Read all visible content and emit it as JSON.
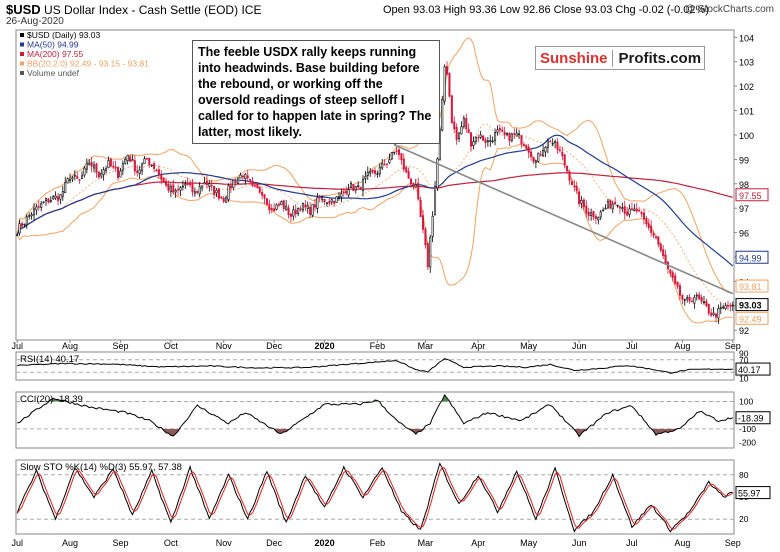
{
  "header": {
    "symbol": "$USD",
    "name": "US Dollar Index - Cash Settle (EOD)",
    "exchange": "ICE",
    "date": "26-Aug-2020",
    "ohlc": "Open 93.03  High 93.36  Low 92.86  Close 93.03  Chg -0.02 (-0.02%)",
    "credit": "@ StockCharts.com"
  },
  "annotation": "The feeble USDX rally keeps running into headwinds. Base building before the rebound, or working off the oversold readings of steep selloff I called for to happen late in spring? The latter, most likely.",
  "brand": {
    "left": "Sunshine",
    "right": "Profits.com"
  },
  "colors": {
    "price_up": "#000000",
    "price_down": "#d6183c",
    "ma50": "#1f3a8f",
    "ma200": "#c0203a",
    "bb": "#f2a262",
    "trendline": "#888888",
    "osc": "#000000",
    "pos_fill": "#4f8a4f",
    "neg_fill": "#8c5a5a",
    "stoch_d": "#e02020"
  },
  "chart_data": [
    {
      "type": "candlestick",
      "title": "$USD (Daily) 93.03",
      "legend": [
        "$USD (Daily) 93.03",
        "MA(50) 94.99",
        "MA(200) 97.55",
        "BB(20,2.0) 92.49 - 93.15 - 93.81",
        "Volume undef"
      ],
      "legend_placement": "top-left",
      "x_ticks": [
        "Jul",
        "Aug",
        "Sep",
        "Oct",
        "Nov",
        "Dec",
        "2020",
        "Feb",
        "Mar",
        "Apr",
        "May",
        "Jun",
        "Jul",
        "Aug",
        "Sep"
      ],
      "y_ticks": [
        92,
        93,
        94,
        95,
        96,
        97,
        98,
        99,
        100,
        101,
        102,
        103,
        104
      ],
      "ylim": [
        91.6,
        104.3
      ],
      "last_value_badges": [
        "97.55",
        "94.99",
        "93.81",
        "93.03",
        "92.49"
      ],
      "close_anchors": [
        [
          0,
          96.1
        ],
        [
          6,
          96.8
        ],
        [
          12,
          97.3
        ],
        [
          18,
          97.5
        ],
        [
          22,
          98.3
        ],
        [
          26,
          98.1
        ],
        [
          30,
          98.9
        ],
        [
          34,
          98.4
        ],
        [
          38,
          98.8
        ],
        [
          42,
          98.4
        ],
        [
          46,
          99.2
        ],
        [
          50,
          98.5
        ],
        [
          54,
          99.0
        ],
        [
          58,
          98.6
        ],
        [
          62,
          97.9
        ],
        [
          66,
          97.6
        ],
        [
          70,
          98.0
        ],
        [
          74,
          97.6
        ],
        [
          78,
          98.1
        ],
        [
          82,
          97.7
        ],
        [
          86,
          97.4
        ],
        [
          90,
          98.1
        ],
        [
          94,
          98.4
        ],
        [
          98,
          97.8
        ],
        [
          102,
          97.7
        ],
        [
          106,
          96.9
        ],
        [
          110,
          97.2
        ],
        [
          114,
          96.7
        ],
        [
          118,
          97.1
        ],
        [
          122,
          96.9
        ],
        [
          126,
          97.4
        ],
        [
          130,
          97.3
        ],
        [
          134,
          97.4
        ],
        [
          138,
          97.9
        ],
        [
          142,
          97.8
        ],
        [
          146,
          98.3
        ],
        [
          150,
          98.5
        ],
        [
          154,
          98.9
        ],
        [
          158,
          99.4
        ],
        [
          162,
          98.4
        ],
        [
          166,
          97.8
        ],
        [
          169,
          96.0
        ],
        [
          171,
          94.7
        ],
        [
          173,
          96.8
        ],
        [
          175,
          99.0
        ],
        [
          177,
          101.3
        ],
        [
          178,
          102.8
        ],
        [
          179,
          102.6
        ],
        [
          181,
          100.6
        ],
        [
          183,
          99.8
        ],
        [
          186,
          100.6
        ],
        [
          189,
          99.7
        ],
        [
          192,
          100.0
        ],
        [
          196,
          99.7
        ],
        [
          200,
          100.1
        ],
        [
          204,
          99.9
        ],
        [
          208,
          100.0
        ],
        [
          212,
          99.6
        ],
        [
          216,
          98.9
        ],
        [
          219,
          99.5
        ],
        [
          222,
          99.8
        ],
        [
          226,
          99.3
        ],
        [
          230,
          98.3
        ],
        [
          234,
          97.3
        ],
        [
          238,
          96.8
        ],
        [
          242,
          96.7
        ],
        [
          246,
          97.1
        ],
        [
          250,
          97.3
        ],
        [
          254,
          96.8
        ],
        [
          258,
          96.9
        ],
        [
          262,
          96.3
        ],
        [
          266,
          95.8
        ],
        [
          270,
          94.7
        ],
        [
          274,
          93.8
        ],
        [
          278,
          93.1
        ],
        [
          282,
          93.4
        ],
        [
          286,
          93.0
        ],
        [
          290,
          92.6
        ],
        [
          294,
          92.9
        ],
        [
          298,
          93.03
        ]
      ]
    },
    {
      "type": "line",
      "title": "RSI(14) 40.17",
      "y_ticks": [
        10,
        30,
        50,
        70,
        90
      ],
      "ylim": [
        5,
        95
      ],
      "levels": [
        30,
        70
      ],
      "last_value": "40.17",
      "value_anchors": [
        [
          0,
          52
        ],
        [
          20,
          58
        ],
        [
          40,
          56
        ],
        [
          60,
          47
        ],
        [
          80,
          50
        ],
        [
          100,
          44
        ],
        [
          120,
          45
        ],
        [
          140,
          57
        ],
        [
          150,
          63
        ],
        [
          158,
          68
        ],
        [
          166,
          38
        ],
        [
          171,
          31
        ],
        [
          178,
          74
        ],
        [
          186,
          46
        ],
        [
          200,
          50
        ],
        [
          212,
          46
        ],
        [
          222,
          55
        ],
        [
          232,
          36
        ],
        [
          244,
          43
        ],
        [
          254,
          52
        ],
        [
          264,
          40
        ],
        [
          272,
          28
        ],
        [
          280,
          38
        ],
        [
          290,
          40
        ],
        [
          298,
          40.17
        ]
      ]
    },
    {
      "type": "line",
      "title": "CCI(20) -18.39",
      "y_ticks": [
        -200,
        -100,
        0,
        100
      ],
      "ylim": [
        -240,
        170
      ],
      "levels": [
        -100,
        100
      ],
      "last_value": "-18.39",
      "value_anchors": [
        [
          0,
          -60
        ],
        [
          15,
          125
        ],
        [
          30,
          60
        ],
        [
          45,
          20
        ],
        [
          55,
          -40
        ],
        [
          65,
          -155
        ],
        [
          75,
          70
        ],
        [
          88,
          -60
        ],
        [
          95,
          20
        ],
        [
          110,
          -140
        ],
        [
          128,
          80
        ],
        [
          142,
          80
        ],
        [
          150,
          110
        ],
        [
          158,
          -40
        ],
        [
          166,
          -140
        ],
        [
          172,
          -60
        ],
        [
          178,
          150
        ],
        [
          186,
          -60
        ],
        [
          196,
          20
        ],
        [
          210,
          -40
        ],
        [
          222,
          80
        ],
        [
          234,
          -150
        ],
        [
          246,
          20
        ],
        [
          256,
          70
        ],
        [
          266,
          -140
        ],
        [
          276,
          -100
        ],
        [
          284,
          30
        ],
        [
          292,
          -40
        ],
        [
          298,
          -18.39
        ]
      ]
    },
    {
      "type": "line",
      "title": "Slow STO %K(14) %D(3) 55.97, 57.38",
      "series": [
        {
          "name": "%K(14)",
          "last": "55.97"
        },
        {
          "name": "%D(3)",
          "last": "57.38"
        }
      ],
      "y_ticks": [
        20,
        50,
        80
      ],
      "ylim": [
        0,
        100
      ],
      "levels": [
        20,
        80
      ],
      "last_value": "55.97",
      "x_ticks": [
        "Jul",
        "Aug",
        "Sep",
        "Oct",
        "Nov",
        "Dec",
        "2020",
        "Feb",
        "Mar",
        "Apr",
        "May",
        "Jun",
        "Jul",
        "Aug",
        "Sep"
      ],
      "value_anchors": [
        [
          0,
          30
        ],
        [
          8,
          85
        ],
        [
          16,
          20
        ],
        [
          24,
          90
        ],
        [
          32,
          50
        ],
        [
          40,
          88
        ],
        [
          48,
          25
        ],
        [
          56,
          85
        ],
        [
          64,
          15
        ],
        [
          72,
          90
        ],
        [
          80,
          20
        ],
        [
          88,
          80
        ],
        [
          96,
          20
        ],
        [
          104,
          85
        ],
        [
          112,
          15
        ],
        [
          120,
          80
        ],
        [
          128,
          35
        ],
        [
          136,
          90
        ],
        [
          144,
          50
        ],
        [
          152,
          90
        ],
        [
          160,
          30
        ],
        [
          168,
          5
        ],
        [
          176,
          95
        ],
        [
          184,
          40
        ],
        [
          192,
          80
        ],
        [
          200,
          30
        ],
        [
          208,
          85
        ],
        [
          216,
          20
        ],
        [
          224,
          88
        ],
        [
          232,
          5
        ],
        [
          240,
          30
        ],
        [
          248,
          80
        ],
        [
          256,
          10
        ],
        [
          264,
          40
        ],
        [
          272,
          5
        ],
        [
          280,
          30
        ],
        [
          288,
          70
        ],
        [
          294,
          50
        ],
        [
          298,
          55.97
        ]
      ]
    }
  ]
}
